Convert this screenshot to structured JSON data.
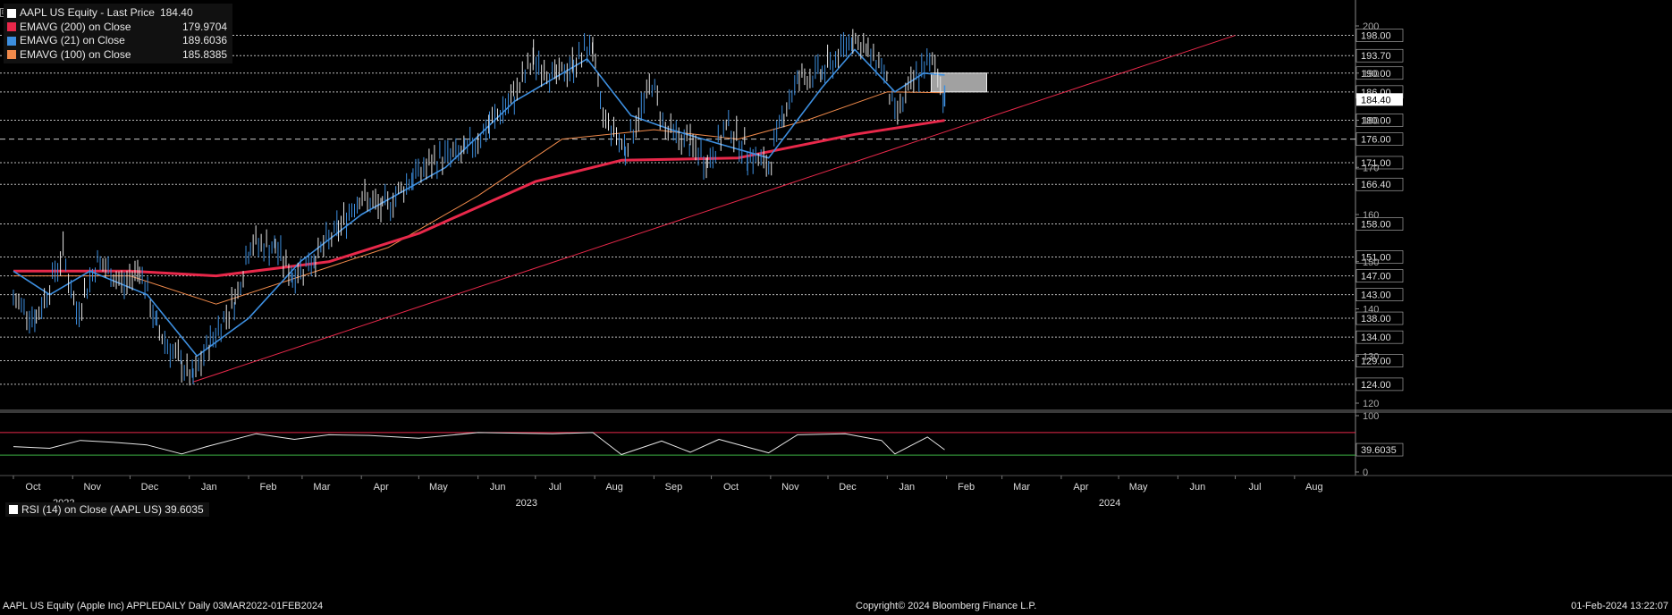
{
  "legend": {
    "title": "AAPL US Equity - Last Price",
    "title_value": "184.40",
    "items": [
      {
        "label": "EMAVG (200)  on Close",
        "value": "179.9704",
        "color": "#e8284a"
      },
      {
        "label": "EMAVG (21)  on Close",
        "value": "189.6036",
        "color": "#3d8fe0"
      },
      {
        "label": "EMAVG (100)  on Close",
        "value": "185.8385",
        "color": "#f08a4b"
      }
    ]
  },
  "rsi_legend": {
    "label": "RSI (14)  on Close (AAPL US) 39.6035"
  },
  "footer": {
    "left": "AAPL US Equity (Apple Inc) APPLEDAILY  Daily 03MAR2022-01FEB2024",
    "center": "Copyright© 2024 Bloomberg Finance L.P.",
    "right": "01-Feb-2024 13:22:07"
  },
  "chart_data": [
    {
      "type": "line",
      "panel": "price",
      "ylim": [
        116,
        202
      ],
      "axis_ticks": [
        "200",
        "190",
        "180",
        "170",
        "160",
        "150",
        "140",
        "130",
        "120"
      ],
      "grid_levels": [
        198.0,
        193.7,
        190.0,
        186.0,
        180.0,
        176.0,
        171.0,
        166.4,
        158.0,
        151.0,
        147.0,
        143.0,
        138.0,
        134.0,
        129.0,
        124.0
      ],
      "level_labels": [
        "198.00",
        "193.70",
        "190.00",
        "186.00",
        "180.00",
        "176.00",
        "171.00",
        "166.40",
        "158.00",
        "151.00",
        "147.00",
        "143.00",
        "138.00",
        "134.00",
        "129.00",
        "124.00"
      ],
      "last_price_label": "184.40",
      "x_months": [
        "Oct",
        "Nov",
        "Dec",
        "Jan",
        "Feb",
        "Mar",
        "Apr",
        "May",
        "Jun",
        "Jul",
        "Aug",
        "Sep",
        "Oct",
        "Nov",
        "Dec",
        "Jan",
        "Feb",
        "Mar",
        "Apr",
        "May",
        "Jun",
        "Jul",
        "Aug"
      ],
      "x_years": [
        "2022",
        "2023",
        "2024"
      ],
      "price_points": [
        [
          "2022-10-01",
          142
        ],
        [
          "2022-10-13",
          138
        ],
        [
          "2022-10-27",
          152
        ],
        [
          "2022-11-03",
          139
        ],
        [
          "2022-11-14",
          150
        ],
        [
          "2022-11-28",
          145
        ],
        [
          "2022-12-06",
          149
        ],
        [
          "2022-12-15",
          136
        ],
        [
          "2022-12-28",
          128
        ],
        [
          "2023-01-03",
          125
        ],
        [
          "2023-01-12",
          133
        ],
        [
          "2023-01-25",
          142
        ],
        [
          "2023-02-02",
          154
        ],
        [
          "2023-02-15",
          153
        ],
        [
          "2023-02-24",
          147
        ],
        [
          "2023-03-08",
          151
        ],
        [
          "2023-03-20",
          157
        ],
        [
          "2023-03-31",
          164
        ],
        [
          "2023-04-12",
          161
        ],
        [
          "2023-04-28",
          168
        ],
        [
          "2023-05-12",
          172
        ],
        [
          "2023-05-25",
          173
        ],
        [
          "2023-06-07",
          179
        ],
        [
          "2023-06-20",
          185
        ],
        [
          "2023-06-30",
          193
        ],
        [
          "2023-07-12",
          189
        ],
        [
          "2023-07-21",
          192
        ],
        [
          "2023-07-31",
          196
        ],
        [
          "2023-08-04",
          182
        ],
        [
          "2023-08-17",
          174
        ],
        [
          "2023-08-31",
          188
        ],
        [
          "2023-09-07",
          178
        ],
        [
          "2023-09-20",
          175
        ],
        [
          "2023-09-29",
          171
        ],
        [
          "2023-10-10",
          179
        ],
        [
          "2023-10-20",
          173
        ],
        [
          "2023-10-31",
          170
        ],
        [
          "2023-11-08",
          182
        ],
        [
          "2023-11-16",
          189
        ],
        [
          "2023-11-28",
          190
        ],
        [
          "2023-12-05",
          193
        ],
        [
          "2023-12-14",
          198
        ],
        [
          "2023-12-22",
          194
        ],
        [
          "2023-12-29",
          192
        ],
        [
          "2024-01-05",
          181
        ],
        [
          "2024-01-12",
          186
        ],
        [
          "2024-01-19",
          191
        ],
        [
          "2024-01-26",
          192
        ],
        [
          "2024-01-31",
          184.4
        ]
      ],
      "series": [
        {
          "name": "EMAVG (200)  on Close",
          "values": [
            [
              "2022-10-01",
              148
            ],
            [
              "2022-12-01",
              148
            ],
            [
              "2023-01-15",
              147
            ],
            [
              "2023-03-15",
              150
            ],
            [
              "2023-05-01",
              156
            ],
            [
              "2023-07-01",
              167
            ],
            [
              "2023-08-15",
              171.5
            ],
            [
              "2023-10-15",
              172
            ],
            [
              "2023-12-15",
              177
            ],
            [
              "2024-01-31",
              179.97
            ]
          ]
        },
        {
          "name": "EMAVG (21)  on Close",
          "values": [
            [
              "2022-10-01",
              148
            ],
            [
              "2022-10-20",
              143
            ],
            [
              "2022-11-10",
              148
            ],
            [
              "2022-12-10",
              143
            ],
            [
              "2023-01-05",
              130
            ],
            [
              "2023-02-01",
              138
            ],
            [
              "2023-02-28",
              150
            ],
            [
              "2023-04-01",
              160
            ],
            [
              "2023-05-15",
              170
            ],
            [
              "2023-06-20",
              184
            ],
            [
              "2023-07-28",
              193
            ],
            [
              "2023-08-20",
              181
            ],
            [
              "2023-09-10",
              178
            ],
            [
              "2023-10-05",
              175
            ],
            [
              "2023-10-31",
              172
            ],
            [
              "2023-11-28",
              187
            ],
            [
              "2023-12-15",
              195
            ],
            [
              "2024-01-05",
              186
            ],
            [
              "2024-01-20",
              190
            ],
            [
              "2024-01-31",
              189.6
            ]
          ]
        },
        {
          "name": "EMAVG (100)  on Close",
          "values": [
            [
              "2022-10-01",
              147
            ],
            [
              "2022-12-01",
              147
            ],
            [
              "2023-01-15",
              141
            ],
            [
              "2023-03-01",
              147
            ],
            [
              "2023-04-15",
              153
            ],
            [
              "2023-06-01",
              164
            ],
            [
              "2023-07-15",
              176
            ],
            [
              "2023-09-01",
              178
            ],
            [
              "2023-10-15",
              176
            ],
            [
              "2023-11-20",
              180
            ],
            [
              "2024-01-01",
              186
            ],
            [
              "2024-01-31",
              185.84
            ]
          ]
        }
      ],
      "trendline": {
        "from": [
          "2023-01-03",
          124.5
        ],
        "to": [
          "2024-07-01",
          198
        ]
      },
      "resistance_box": {
        "x": [
          "2024-01-24",
          "2024-02-22"
        ],
        "y": [
          186,
          190
        ]
      }
    },
    {
      "type": "line",
      "panel": "rsi",
      "ylim": [
        0,
        100
      ],
      "axis_ticks": [
        "100",
        "0"
      ],
      "upper_line": 70,
      "lower_line": 30,
      "last_value_label": "39.6035",
      "series": [
        {
          "name": "RSI (14)  on Close (AAPL US)",
          "values": [
            [
              "2022-10-01",
              45
            ],
            [
              "2022-10-20",
              42
            ],
            [
              "2022-11-05",
              56
            ],
            [
              "2022-11-25",
              52
            ],
            [
              "2022-12-10",
              48
            ],
            [
              "2022-12-28",
              32
            ],
            [
              "2023-01-10",
              45
            ],
            [
              "2023-02-05",
              68
            ],
            [
              "2023-02-25",
              58
            ],
            [
              "2023-03-15",
              66
            ],
            [
              "2023-04-05",
              65
            ],
            [
              "2023-05-01",
              60
            ],
            [
              "2023-06-01",
              70
            ],
            [
              "2023-07-10",
              68
            ],
            [
              "2023-07-31",
              70
            ],
            [
              "2023-08-15",
              31
            ],
            [
              "2023-09-05",
              55
            ],
            [
              "2023-09-20",
              35
            ],
            [
              "2023-10-05",
              58
            ],
            [
              "2023-10-31",
              34
            ],
            [
              "2023-11-15",
              66
            ],
            [
              "2023-12-10",
              68
            ],
            [
              "2023-12-29",
              56
            ],
            [
              "2024-01-05",
              32
            ],
            [
              "2024-01-22",
              62
            ],
            [
              "2024-01-31",
              39.6
            ]
          ]
        }
      ]
    }
  ]
}
